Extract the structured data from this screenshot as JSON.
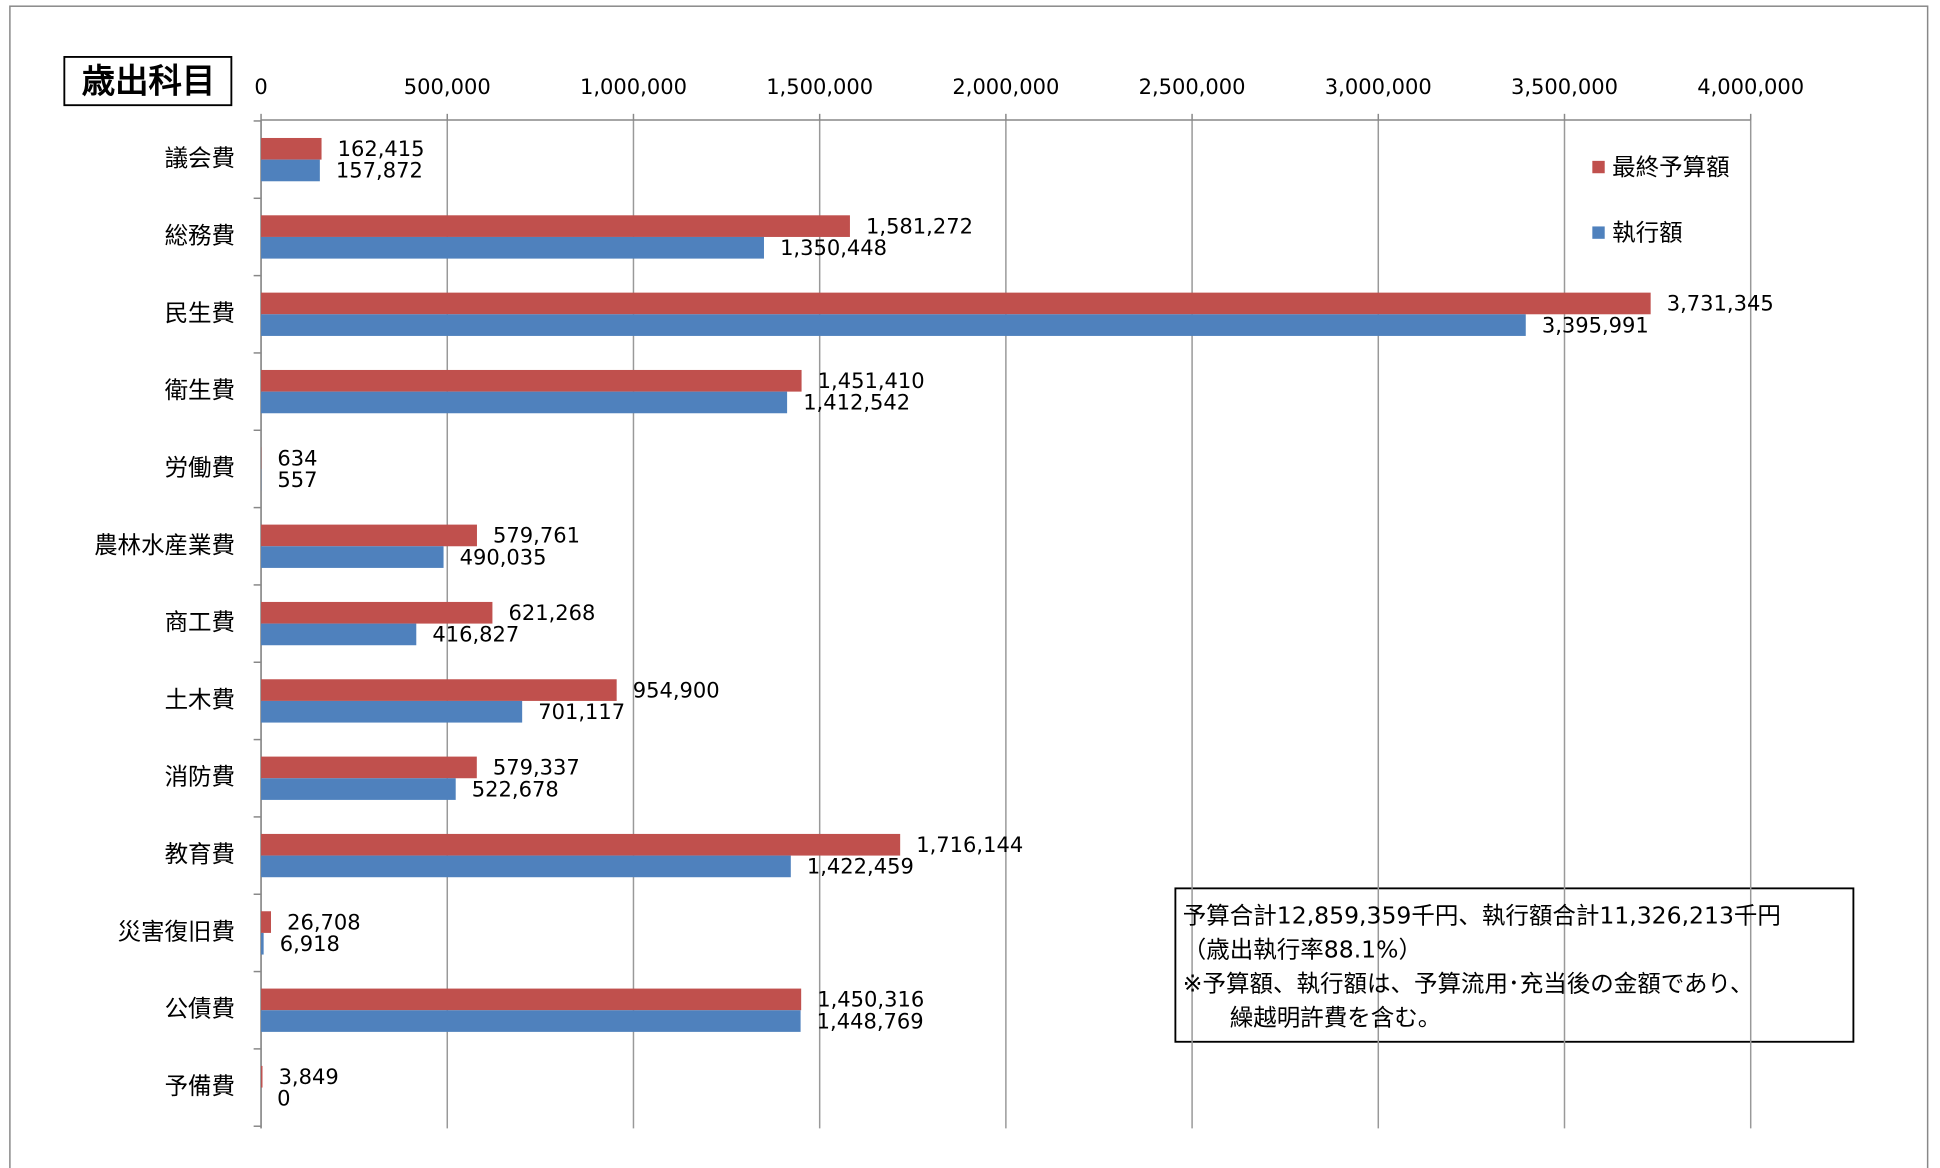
{
  "chart_data": {
    "type": "hbar",
    "title": "歳出科目",
    "categories": [
      "議会費",
      "総務費",
      "民生費",
      "衛生費",
      "労働費",
      "農林水産業費",
      "商工費",
      "土木費",
      "消防費",
      "教育費",
      "災害復旧費",
      "公債費",
      "予備費"
    ],
    "series": [
      {
        "name": "最終予算額",
        "color": "#c0504d",
        "values": [
          162415,
          1581272,
          3731345,
          1451410,
          634,
          579761,
          621268,
          954900,
          579337,
          1716144,
          26708,
          1450316,
          3849
        ],
        "value_labels": [
          "162,415",
          "1,581,272",
          "3,731,345",
          "1,451,410",
          "634",
          "579,761",
          "621,268",
          "954,900",
          "579,337",
          "1,716,144",
          "26,708",
          "1,450,316",
          "3,849"
        ]
      },
      {
        "name": "執行額",
        "color": "#4f81bd",
        "values": [
          157872,
          1350448,
          3395991,
          1412542,
          557,
          490035,
          416827,
          701117,
          522678,
          1422459,
          6918,
          1448769,
          0
        ],
        "value_labels": [
          "157,872",
          "1,350,448",
          "3,395,991",
          "1,412,542",
          "557",
          "490,035",
          "416,827",
          "701,117",
          "522,678",
          "1,422,459",
          "6,918",
          "1,448,769",
          "0"
        ]
      }
    ],
    "xlim": [
      0,
      4000000
    ],
    "xticks": [
      0,
      {
        "value": 500000,
        "label": "500,000"
      },
      {
        "value": 1000000,
        "label": "1,000,000"
      },
      {
        "value": 1500000,
        "label": "1,500,000"
      },
      {
        "value": 2000000,
        "label": "2,000,000"
      },
      {
        "value": 2500000,
        "label": "2,500,000"
      },
      {
        "value": 3000000,
        "label": "3,000,000"
      },
      {
        "value": 3500000,
        "label": "3,500,000"
      },
      {
        "value": 4000000,
        "label": "4,000,000"
      }
    ],
    "grid": true,
    "annotations": [
      "予算合計12,859,359千円、執行額合計11,326,213千円",
      "（歳出執行率88.1%）",
      "※予算額、執行額は、予算流用･充当後の金額であり、",
      "　　繰越明許費を含む。"
    ]
  }
}
